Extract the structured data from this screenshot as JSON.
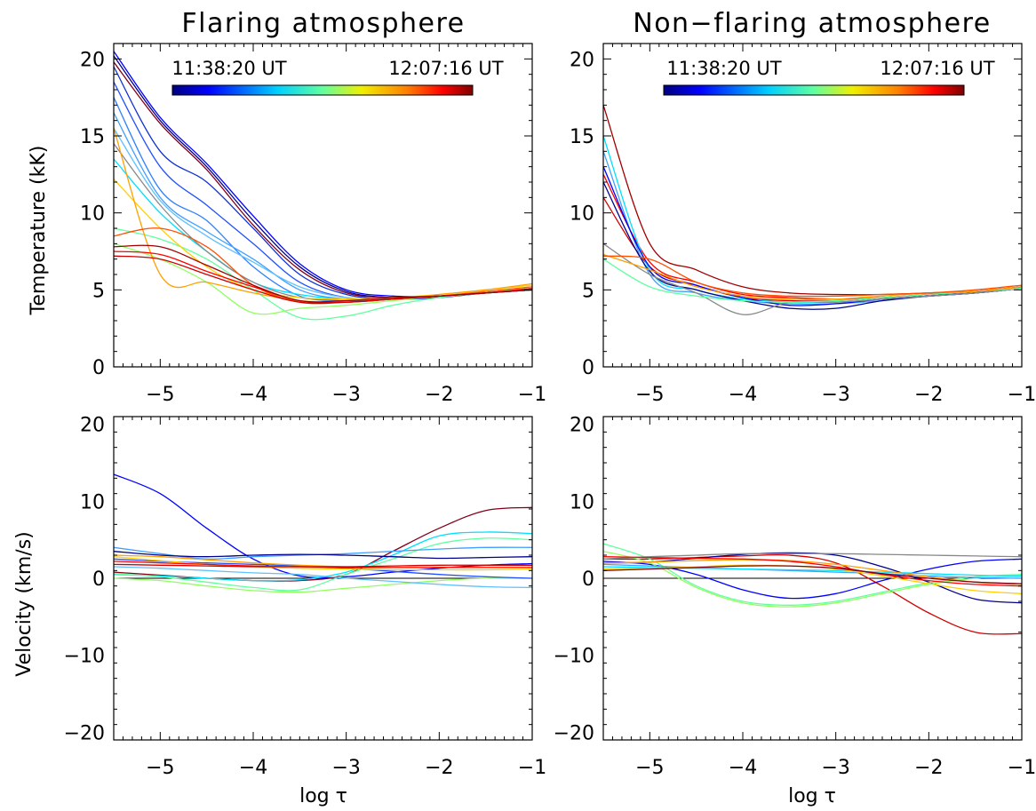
{
  "figure": {
    "panel_titles": [
      "Flaring atmosphere",
      "Non−flaring atmosphere"
    ],
    "colorbar": {
      "start_label": "11:38:20 UT",
      "end_label": "12:07:16 UT"
    },
    "x_axis_label": "log τ"
  },
  "chart_data": [
    {
      "type": "line",
      "panel": "top-left",
      "title": "Flaring atmosphere",
      "xlabel": "",
      "ylabel": "Temperature (kK)",
      "xlim": [
        -5.5,
        -1
      ],
      "ylim": [
        0,
        21
      ],
      "xticks": [
        -5,
        -4,
        -3,
        -2,
        -1
      ],
      "yticks": [
        0,
        5,
        10,
        15,
        20
      ],
      "grid": false,
      "colorbar": {
        "start": "11:38:20 UT",
        "end": "12:07:16 UT",
        "placement": "top-center"
      },
      "x": [
        -5.5,
        -5.0,
        -4.5,
        -4.0,
        -3.5,
        -3.0,
        -2.5,
        -2.0,
        -1.5,
        -1.0
      ],
      "series": [
        {
          "color": "#00008f",
          "values": [
            20.2,
            16.0,
            13.0,
            9.5,
            6.5,
            4.9,
            4.5,
            4.6,
            4.8,
            5.0
          ]
        },
        {
          "color": "#80001a",
          "values": [
            19.8,
            15.8,
            12.8,
            9.2,
            6.3,
            4.8,
            4.5,
            4.6,
            4.8,
            5.0
          ]
        },
        {
          "color": "#0000ff",
          "values": [
            20.5,
            16.2,
            13.2,
            9.8,
            6.7,
            5.0,
            4.6,
            4.6,
            4.8,
            5.1
          ]
        },
        {
          "color": "#1030d0",
          "values": [
            19.5,
            14.0,
            12.0,
            9.0,
            6.0,
            4.7,
            4.4,
            4.5,
            4.8,
            5.0
          ]
        },
        {
          "color": "#2050ff",
          "values": [
            18.5,
            13.0,
            10.5,
            8.0,
            5.5,
            4.5,
            4.4,
            4.6,
            4.8,
            5.0
          ]
        },
        {
          "color": "#3080ff",
          "values": [
            17.5,
            11.5,
            9.5,
            6.5,
            4.6,
            4.3,
            4.4,
            4.6,
            4.8,
            5.0
          ]
        },
        {
          "color": "#40a0ff",
          "values": [
            16.5,
            11.0,
            8.8,
            7.0,
            5.0,
            4.4,
            4.4,
            4.6,
            4.8,
            5.0
          ]
        },
        {
          "color": "#60c0ff",
          "values": [
            15.5,
            10.8,
            8.5,
            6.8,
            5.2,
            4.5,
            4.4,
            4.6,
            4.8,
            5.0
          ]
        },
        {
          "color": "#00e0ff",
          "values": [
            13.5,
            10.0,
            7.5,
            5.5,
            4.7,
            4.4,
            4.4,
            4.6,
            4.8,
            5.1
          ]
        },
        {
          "color": "#888888",
          "values": [
            14.5,
            10.5,
            7.5,
            5.5,
            4.5,
            4.4,
            4.4,
            4.6,
            4.8,
            5.0
          ]
        },
        {
          "color": "#60ffa0",
          "values": [
            9.0,
            8.3,
            7.0,
            5.0,
            3.2,
            3.3,
            4.0,
            4.5,
            4.8,
            5.0
          ]
        },
        {
          "color": "#90ff60",
          "values": [
            8.0,
            7.0,
            5.5,
            3.5,
            3.8,
            4.0,
            4.3,
            4.6,
            4.9,
            5.1
          ]
        },
        {
          "color": "#ffd000",
          "values": [
            12.2,
            9.0,
            6.5,
            5.0,
            4.5,
            4.4,
            4.5,
            4.7,
            5.0,
            5.3
          ]
        },
        {
          "color": "#ffa000",
          "values": [
            15.5,
            6.0,
            5.5,
            4.8,
            4.3,
            4.2,
            4.4,
            4.7,
            5.0,
            5.4
          ]
        },
        {
          "color": "#ff5000",
          "values": [
            8.5,
            9.0,
            7.8,
            5.3,
            4.2,
            4.2,
            4.4,
            4.6,
            4.9,
            5.2
          ]
        },
        {
          "color": "#ff0000",
          "values": [
            7.5,
            7.3,
            6.2,
            5.2,
            4.3,
            4.2,
            4.4,
            4.6,
            4.8,
            5.1
          ]
        },
        {
          "color": "#d00000",
          "values": [
            7.2,
            7.0,
            6.0,
            5.0,
            4.2,
            4.2,
            4.4,
            4.6,
            4.8,
            5.0
          ]
        },
        {
          "color": "#a00000",
          "values": [
            7.8,
            7.8,
            6.6,
            5.3,
            4.3,
            4.3,
            4.5,
            4.6,
            4.8,
            5.0
          ]
        }
      ]
    },
    {
      "type": "line",
      "panel": "top-right",
      "title": "Non−flaring atmosphere",
      "xlabel": "",
      "ylabel": "",
      "xlim": [
        -5.5,
        -1
      ],
      "ylim": [
        0,
        21
      ],
      "xticks": [
        -5,
        -4,
        -3,
        -2,
        -1
      ],
      "yticks": [
        0,
        5,
        10,
        15,
        20
      ],
      "grid": false,
      "colorbar": {
        "start": "11:38:20 UT",
        "end": "12:07:16 UT",
        "placement": "top-center"
      },
      "x": [
        -5.5,
        -5.0,
        -4.5,
        -4.0,
        -3.5,
        -3.0,
        -2.5,
        -2.0,
        -1.5,
        -1.0
      ],
      "series": [
        {
          "color": "#a00000",
          "values": [
            17.0,
            8.0,
            6.3,
            5.2,
            4.8,
            4.7,
            4.7,
            4.8,
            4.9,
            5.2
          ]
        },
        {
          "color": "#ff0000",
          "values": [
            12.5,
            6.8,
            5.5,
            4.7,
            4.5,
            4.4,
            4.5,
            4.7,
            4.9,
            5.2
          ]
        },
        {
          "color": "#d00000",
          "values": [
            11.0,
            6.5,
            5.3,
            4.5,
            4.3,
            4.3,
            4.5,
            4.7,
            4.9,
            5.1
          ]
        },
        {
          "color": "#00e0ff",
          "values": [
            15.0,
            6.3,
            5.0,
            4.4,
            4.2,
            4.2,
            4.4,
            4.6,
            4.8,
            5.1
          ]
        },
        {
          "color": "#40a0ff",
          "values": [
            14.0,
            6.0,
            4.8,
            4.3,
            4.1,
            4.1,
            4.3,
            4.6,
            4.8,
            5.1
          ]
        },
        {
          "color": "#0000ff",
          "values": [
            13.0,
            6.5,
            5.3,
            4.5,
            4.0,
            4.1,
            4.4,
            4.6,
            4.8,
            5.1
          ]
        },
        {
          "color": "#00008f",
          "values": [
            12.0,
            6.2,
            5.0,
            4.3,
            3.8,
            3.8,
            4.3,
            4.6,
            4.8,
            5.1
          ]
        },
        {
          "color": "#888888",
          "values": [
            8.0,
            6.0,
            4.8,
            3.4,
            4.2,
            4.2,
            4.4,
            4.6,
            4.8,
            5.1
          ]
        },
        {
          "color": "#60ffa0",
          "values": [
            7.0,
            5.2,
            4.6,
            4.3,
            4.2,
            4.3,
            4.5,
            4.7,
            4.9,
            5.1
          ]
        },
        {
          "color": "#ffa000",
          "values": [
            7.3,
            6.3,
            5.2,
            4.6,
            4.4,
            4.4,
            4.6,
            4.8,
            4.9,
            5.2
          ]
        },
        {
          "color": "#ff5000",
          "values": [
            7.2,
            7.0,
            5.5,
            4.8,
            4.6,
            4.6,
            4.7,
            4.8,
            5.0,
            5.3
          ]
        }
      ]
    },
    {
      "type": "line",
      "panel": "bottom-left",
      "title": "",
      "xlabel": "log τ",
      "ylabel": "Velocity (km/s)",
      "xlim": [
        -5.5,
        -1
      ],
      "ylim": [
        -21,
        21
      ],
      "xticks": [
        -5,
        -4,
        -3,
        -2,
        -1
      ],
      "yticks": [
        -20,
        -10,
        0,
        10,
        20
      ],
      "grid": false,
      "reference_line": 0,
      "x": [
        -5.5,
        -5.0,
        -4.5,
        -4.0,
        -3.5,
        -3.0,
        -2.5,
        -2.0,
        -1.5,
        -1.0
      ],
      "series": [
        {
          "color": "#0000ff",
          "values": [
            13.5,
            11.0,
            6.5,
            2.5,
            0.3,
            0.2,
            0.8,
            1.3,
            1.7,
            1.9
          ]
        },
        {
          "color": "#80001a",
          "values": [
            0.8,
            0.4,
            0.0,
            -0.3,
            -0.3,
            0.5,
            3.5,
            6.5,
            8.8,
            9.2
          ]
        },
        {
          "color": "#00e0ff",
          "values": [
            0.5,
            0.3,
            0.0,
            -0.3,
            -0.2,
            0.8,
            3.0,
            5.5,
            6.0,
            5.8
          ]
        },
        {
          "color": "#60ffa0",
          "values": [
            0.6,
            0.2,
            -0.5,
            -1.2,
            -1.5,
            0.5,
            2.5,
            4.5,
            5.2,
            5.0
          ]
        },
        {
          "color": "#90ff60",
          "values": [
            0.0,
            -0.3,
            -1.0,
            -1.6,
            -1.8,
            -1.3,
            -0.8,
            -0.3,
            0.0,
            0.0
          ]
        },
        {
          "color": "#40a0ff",
          "values": [
            4.0,
            3.2,
            2.5,
            2.8,
            3.0,
            3.2,
            3.5,
            3.8,
            4.0,
            4.0
          ]
        },
        {
          "color": "#00008f",
          "values": [
            3.5,
            3.0,
            2.8,
            3.0,
            3.1,
            3.0,
            2.8,
            2.6,
            2.7,
            2.8
          ]
        },
        {
          "color": "#2050ff",
          "values": [
            2.5,
            2.2,
            2.0,
            1.8,
            1.6,
            1.3,
            0.9,
            0.5,
            0.2,
            0.0
          ]
        },
        {
          "color": "#60c0ff",
          "values": [
            1.5,
            1.3,
            1.0,
            0.7,
            0.5,
            0.0,
            -0.4,
            -0.8,
            -1.1,
            -1.2
          ]
        },
        {
          "color": "#ffd000",
          "values": [
            2.8,
            2.3,
            1.8,
            1.5,
            1.3,
            1.2,
            1.1,
            1.1,
            1.1,
            1.2
          ]
        },
        {
          "color": "#ffa000",
          "values": [
            3.0,
            2.8,
            2.4,
            2.0,
            1.7,
            1.5,
            1.4,
            1.4,
            1.4,
            1.4
          ]
        },
        {
          "color": "#ff0000",
          "values": [
            2.2,
            2.0,
            1.8,
            1.6,
            1.5,
            1.4,
            1.4,
            1.4,
            1.4,
            1.4
          ]
        },
        {
          "color": "#d00000",
          "values": [
            1.8,
            1.7,
            1.6,
            1.5,
            1.5,
            1.5,
            1.6,
            1.7,
            1.7,
            1.7
          ]
        }
      ]
    },
    {
      "type": "line",
      "panel": "bottom-right",
      "title": "",
      "xlabel": "log τ",
      "ylabel": "",
      "xlim": [
        -5.5,
        -1
      ],
      "ylim": [
        -21,
        21
      ],
      "xticks": [
        -5,
        -4,
        -3,
        -2,
        -1
      ],
      "yticks": [
        -20,
        -10,
        0,
        10,
        20
      ],
      "grid": false,
      "reference_line": 0,
      "x": [
        -5.5,
        -5.0,
        -4.5,
        -4.0,
        -3.5,
        -3.0,
        -2.5,
        -2.0,
        -1.5,
        -1.0
      ],
      "series": [
        {
          "color": "#d00000",
          "values": [
            2.5,
            2.5,
            2.7,
            2.9,
            3.0,
            2.0,
            -1.0,
            -4.5,
            -7.0,
            -7.2
          ]
        },
        {
          "color": "#00008f",
          "values": [
            2.0,
            2.1,
            2.6,
            3.1,
            3.3,
            3.0,
            1.5,
            -0.5,
            -2.7,
            -3.2
          ]
        },
        {
          "color": "#0000ff",
          "values": [
            2.2,
            1.8,
            0.5,
            -1.5,
            -2.6,
            -2.0,
            -0.3,
            1.2,
            2.2,
            2.5
          ]
        },
        {
          "color": "#60ffa0",
          "values": [
            4.5,
            2.5,
            -1.0,
            -3.0,
            -3.5,
            -3.0,
            -1.8,
            -0.6,
            0.2,
            0.5
          ]
        },
        {
          "color": "#90ff60",
          "values": [
            3.5,
            2.0,
            -1.2,
            -3.2,
            -3.7,
            -3.2,
            -2.0,
            -0.8,
            0.0,
            0.3
          ]
        },
        {
          "color": "#888888",
          "values": [
            2.5,
            2.8,
            3.0,
            3.2,
            3.2,
            3.2,
            3.1,
            3.0,
            2.9,
            2.8
          ]
        },
        {
          "color": "#40a0ff",
          "values": [
            1.8,
            1.6,
            1.4,
            1.2,
            1.0,
            0.8,
            0.6,
            0.3,
            0.1,
            0.0
          ]
        },
        {
          "color": "#00e0ff",
          "values": [
            1.5,
            1.4,
            1.3,
            1.2,
            1.1,
            1.0,
            0.8,
            0.6,
            0.4,
            0.3
          ]
        },
        {
          "color": "#ffd000",
          "values": [
            1.2,
            1.3,
            1.5,
            1.7,
            1.6,
            1.2,
            0.3,
            -0.7,
            -1.6,
            -2.0
          ]
        },
        {
          "color": "#ffa000",
          "values": [
            2.0,
            2.1,
            2.3,
            2.4,
            2.3,
            1.8,
            1.0,
            0.2,
            -0.5,
            -0.8
          ]
        },
        {
          "color": "#ff0000",
          "values": [
            2.8,
            2.7,
            2.6,
            2.5,
            2.2,
            1.5,
            0.5,
            -0.3,
            -0.8,
            -1.0
          ]
        },
        {
          "color": "#80001a",
          "values": [
            1.0,
            1.2,
            1.4,
            1.6,
            1.6,
            1.3,
            0.6,
            0.0,
            -0.5,
            -0.7
          ]
        }
      ]
    }
  ]
}
